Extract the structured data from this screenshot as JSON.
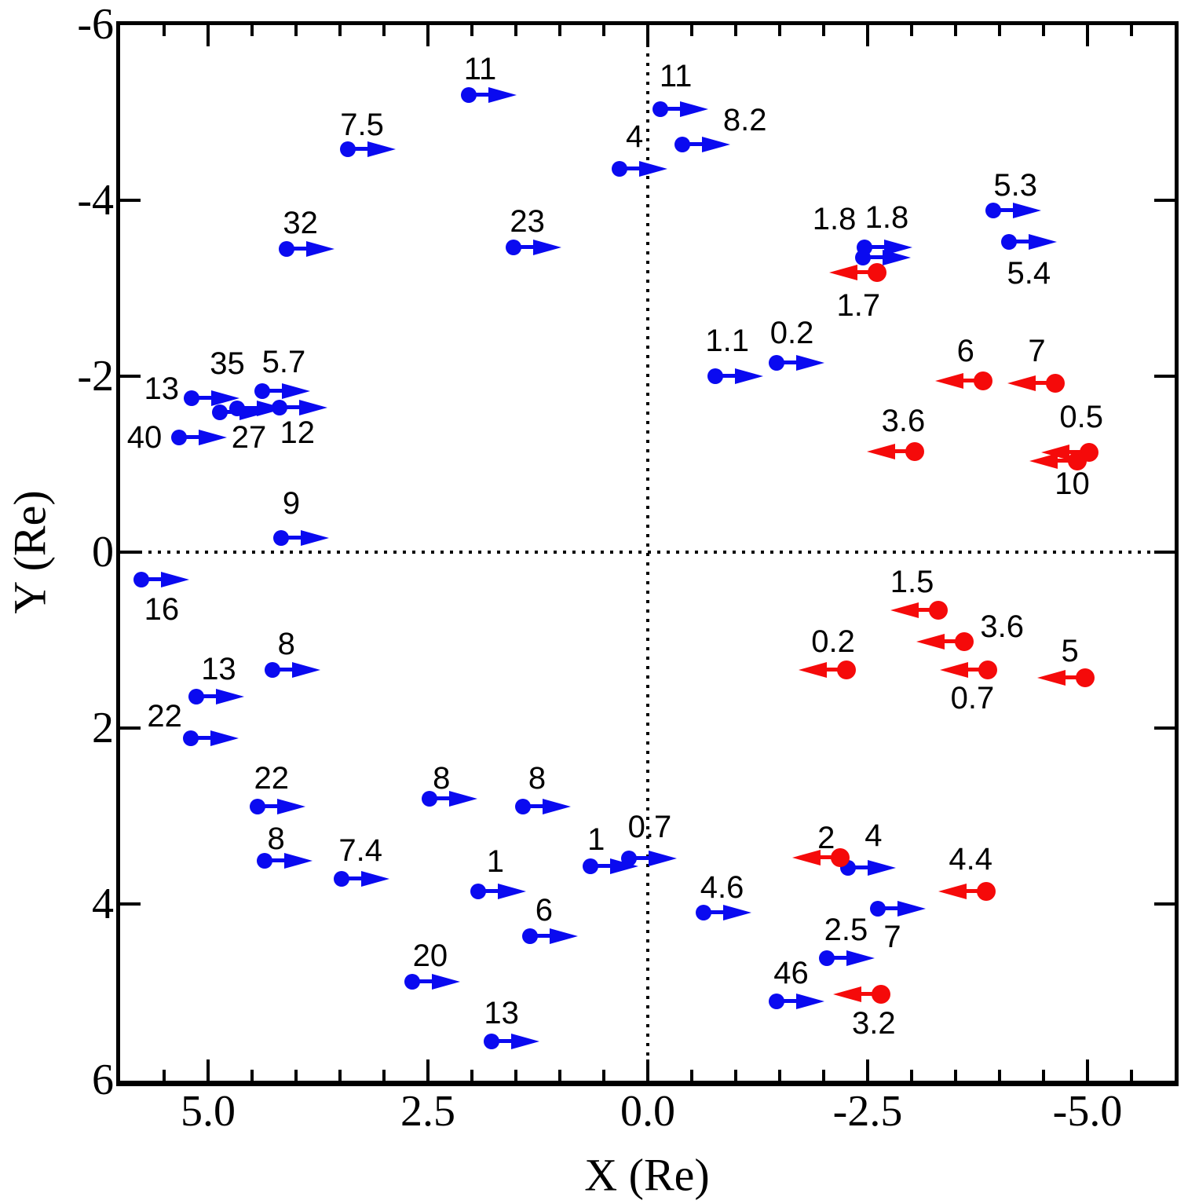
{
  "chart_data": {
    "type": "scatter",
    "title": "",
    "xlabel": "X (Re)",
    "ylabel": "Y (Re)",
    "xlim": [
      6,
      -6
    ],
    "ylim": [
      -6,
      6
    ],
    "grid": false,
    "legend": "none",
    "zero_lines": {
      "x": 0,
      "y": 0,
      "style": "dotted"
    },
    "x_axis": {
      "title": "X (Re)",
      "major_ticks": [
        {
          "value": 5.0,
          "label": "5.0"
        },
        {
          "value": 2.5,
          "label": "2.5"
        },
        {
          "value": 0.0,
          "label": "0.0"
        },
        {
          "value": -2.5,
          "label": "-2.5"
        },
        {
          "value": -5.0,
          "label": "-5.0"
        }
      ],
      "minor_tick_values": [
        5.5,
        4.5,
        4.0,
        3.5,
        3.0,
        2.0,
        1.5,
        1.0,
        0.5,
        -0.5,
        -1.0,
        -1.5,
        -2.0,
        -3.0,
        -3.5,
        -4.0,
        -4.5,
        -5.5
      ]
    },
    "y_axis": {
      "title": "Y (Re)",
      "major_ticks": [
        {
          "value": -6,
          "label": "-6"
        },
        {
          "value": -4,
          "label": "-4"
        },
        {
          "value": -2,
          "label": "-2"
        },
        {
          "value": 0,
          "label": "0"
        },
        {
          "value": 2,
          "label": "2"
        },
        {
          "value": 4,
          "label": "4"
        },
        {
          "value": 6,
          "label": "6"
        }
      ]
    },
    "series": [
      {
        "name": "blue-rightward-vectors",
        "color": "#0a0af0",
        "arrow_dir": "right",
        "points": [
          {
            "x": 2.04,
            "y": -5.2,
            "label": "11",
            "dx": 15,
            "dy": -33
          },
          {
            "x": 3.41,
            "y": -4.58,
            "label": "7.5",
            "dx": 18,
            "dy": -31
          },
          {
            "x": 4.11,
            "y": -3.45,
            "label": "32",
            "dx": 18,
            "dy": -33
          },
          {
            "x": 1.53,
            "y": -3.46,
            "label": "23",
            "dx": 18,
            "dy": -33
          },
          {
            "x": 5.19,
            "y": -1.75,
            "label": "13",
            "dx": -38,
            "dy": -12
          },
          {
            "x": 4.87,
            "y": -1.59,
            "label": "35",
            "dx": 10,
            "dy": -62
          },
          {
            "x": 4.67,
            "y": -1.63,
            "label": "27",
            "dx": 15,
            "dy": 37
          },
          {
            "x": 4.19,
            "y": -1.64,
            "label": "12",
            "dx": 23,
            "dy": 32
          },
          {
            "x": 4.38,
            "y": -1.83,
            "label": "5.7",
            "dx": 27,
            "dy": -37
          },
          {
            "x": 5.33,
            "y": -1.3,
            "label": "40",
            "dx": -44,
            "dy": 0
          },
          {
            "x": 4.17,
            "y": -0.16,
            "label": "9",
            "dx": 13,
            "dy": -44
          },
          {
            "x": 5.76,
            "y": 0.31,
            "label": "16",
            "dx": 26,
            "dy": 38
          },
          {
            "x": -0.14,
            "y": -5.04,
            "label": "11",
            "dx": 20,
            "dy": -42
          },
          {
            "x": -0.39,
            "y": -4.63,
            "label": "8.2",
            "dx": 80,
            "dy": -31
          },
          {
            "x": 0.32,
            "y": -4.36,
            "label": "4",
            "dx": 19,
            "dy": -41
          },
          {
            "x": -2.46,
            "y": -3.46,
            "label": "1.8",
            "dx": -38,
            "dy": -36
          },
          {
            "x": -2.45,
            "y": -3.35,
            "label": "1.8",
            "dx": 30,
            "dy": -51
          },
          {
            "x": -0.77,
            "y": -2.0,
            "label": "1.1",
            "dx": 15,
            "dy": -45
          },
          {
            "x": -1.46,
            "y": -2.15,
            "label": "0.2",
            "dx": 20,
            "dy": -38
          },
          {
            "x": -3.93,
            "y": -3.88,
            "label": "5.3",
            "dx": 28,
            "dy": -32
          },
          {
            "x": -4.11,
            "y": -3.53,
            "label": "5.4",
            "dx": 25,
            "dy": 40
          },
          {
            "x": 4.27,
            "y": 1.34,
            "label": "8",
            "dx": 18,
            "dy": -33
          },
          {
            "x": 5.13,
            "y": 1.64,
            "label": "13",
            "dx": 28,
            "dy": -35
          },
          {
            "x": 5.2,
            "y": 2.12,
            "label": "22",
            "dx": -33,
            "dy": -28
          },
          {
            "x": 4.44,
            "y": 2.89,
            "label": "22",
            "dx": 18,
            "dy": -36
          },
          {
            "x": 4.36,
            "y": 3.51,
            "label": "8",
            "dx": 15,
            "dy": -28
          },
          {
            "x": 3.48,
            "y": 3.71,
            "label": "7.4",
            "dx": 24,
            "dy": -36
          },
          {
            "x": 2.48,
            "y": 2.8,
            "label": "8",
            "dx": 15,
            "dy": -26
          },
          {
            "x": 1.42,
            "y": 2.89,
            "label": "8",
            "dx": 18,
            "dy": -36
          },
          {
            "x": 1.93,
            "y": 3.86,
            "label": "1",
            "dx": 22,
            "dy": -38
          },
          {
            "x": 1.34,
            "y": 4.37,
            "label": "6",
            "dx": 18,
            "dy": -33
          },
          {
            "x": 2.68,
            "y": 4.88,
            "label": "20",
            "dx": 23,
            "dy": -33
          },
          {
            "x": 1.78,
            "y": 5.56,
            "label": "13",
            "dx": 13,
            "dy": -36
          },
          {
            "x": 0.65,
            "y": 3.57,
            "label": "1",
            "dx": 7,
            "dy": -34
          },
          {
            "x": 0.21,
            "y": 3.48,
            "label": "0.7",
            "dx": 26,
            "dy": -40
          },
          {
            "x": -2.28,
            "y": 3.59,
            "label": "4",
            "dx": 32,
            "dy": -41
          },
          {
            "x": -0.63,
            "y": 4.1,
            "label": "4.6",
            "dx": 24,
            "dy": -32
          },
          {
            "x": -2.62,
            "y": 4.05,
            "label": "7",
            "dx": 18,
            "dy": 36
          },
          {
            "x": -2.04,
            "y": 4.62,
            "label": "2.5",
            "dx": 24,
            "dy": -36
          },
          {
            "x": -1.46,
            "y": 5.11,
            "label": "46",
            "dx": 19,
            "dy": -36
          }
        ]
      },
      {
        "name": "red-leftward-vectors",
        "color": "#f50a0a",
        "arrow_dir": "left",
        "points": [
          {
            "x": -2.61,
            "y": -3.18,
            "label": "1.7",
            "dx": -24,
            "dy": 42
          },
          {
            "x": -3.81,
            "y": -1.95,
            "label": "6",
            "dx": -22,
            "dy": -38
          },
          {
            "x": -4.63,
            "y": -1.92,
            "label": "7",
            "dx": -23,
            "dy": -41
          },
          {
            "x": -3.04,
            "y": -1.14,
            "label": "3.6",
            "dx": -15,
            "dy": -39
          },
          {
            "x": -5.02,
            "y": -1.13,
            "label": "0.5",
            "dx": -10,
            "dy": -45
          },
          {
            "x": -4.88,
            "y": -1.04,
            "label": "10",
            "dx": -6,
            "dy": 29
          },
          {
            "x": -3.3,
            "y": 0.66,
            "label": "1.5",
            "dx": -33,
            "dy": -36
          },
          {
            "x": -3.6,
            "y": 1.02,
            "label": "3.6",
            "dx": 48,
            "dy": -19
          },
          {
            "x": -2.26,
            "y": 1.34,
            "label": "0.2",
            "dx": -17,
            "dy": -36
          },
          {
            "x": -3.87,
            "y": 1.34,
            "label": "0.7",
            "dx": -20,
            "dy": 36
          },
          {
            "x": -4.97,
            "y": 1.43,
            "label": "5",
            "dx": -19,
            "dy": -34
          },
          {
            "x": -2.19,
            "y": 3.47,
            "label": "2",
            "dx": -18,
            "dy": -25
          },
          {
            "x": -3.85,
            "y": 3.86,
            "label": "4.4",
            "dx": -20,
            "dy": -41
          },
          {
            "x": -2.65,
            "y": 5.03,
            "label": "3.2",
            "dx": -9,
            "dy": 37
          }
        ]
      }
    ]
  }
}
